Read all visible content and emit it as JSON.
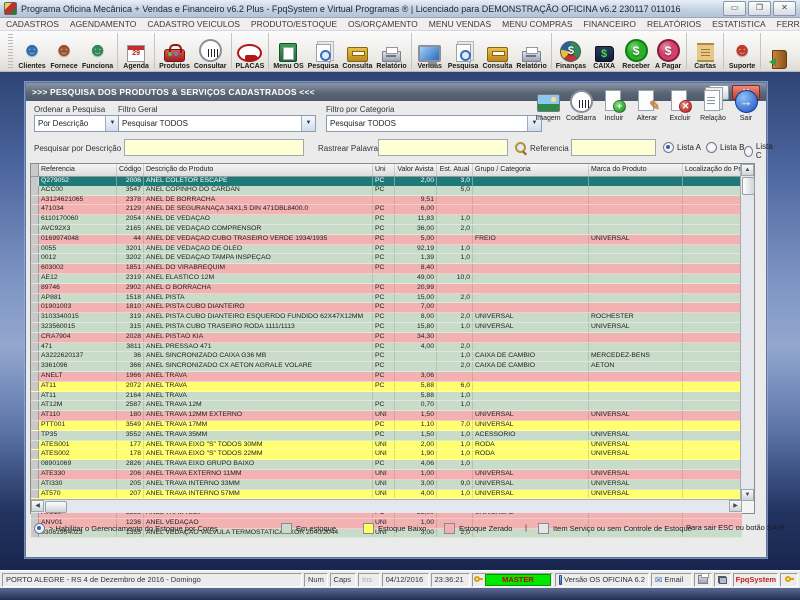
{
  "window": {
    "title": "Programa Oficina Mecânica + Vendas e Financeiro v6.2 Plus - FpqSystem e Virtual Programas ® | Licenciado para  DEMONSTRAÇÃO OFICINA v6.2 230117 011016",
    "minimize": "▭",
    "maximize": "❐",
    "close": "✕"
  },
  "menu": {
    "items": [
      "CADASTROS",
      "AGENDAMENTO",
      "CADASTRO VEICULOS",
      "PRODUTO/ESTOQUE",
      "OS/ORÇAMENTO",
      "MENU VENDAS",
      "MENU COMPRAS",
      "FINANCEIRO",
      "RELATÓRIOS",
      "ESTATISTICA",
      "FERRAMENTAS",
      "AJUDA"
    ],
    "email_label": "E-MAIL"
  },
  "toolbar": {
    "groups": [
      [
        {
          "name": "clientes-button",
          "label": "Clientes",
          "kind": "person",
          "glyph": "☻",
          "color": "#2e6db4"
        },
        {
          "name": "fornecedores-button",
          "label": "Fornece",
          "kind": "person",
          "glyph": "☻",
          "color": "#a0522d"
        },
        {
          "name": "funcionarios-button",
          "label": "Funciona",
          "kind": "person",
          "glyph": "☻",
          "color": "#2e8b57"
        }
      ],
      [
        {
          "name": "agenda-button",
          "label": "Agenda",
          "kind": "calendar",
          "glyph": "29",
          "color": "#b02020"
        }
      ],
      [
        {
          "name": "produtos-button",
          "label": "Produtos",
          "kind": "toolbox",
          "glyph": "",
          "color": "#a02020"
        },
        {
          "name": "consultar-button",
          "label": "Consultar",
          "kind": "barcode",
          "glyph": "",
          "color": "#8a9098"
        }
      ],
      [
        {
          "name": "placas-button",
          "label": "PLACAS",
          "kind": "car",
          "glyph": "",
          "color": "#b01818"
        }
      ],
      [
        {
          "name": "menu-os-button",
          "label": "Menu OS",
          "kind": "board",
          "glyph": "✎",
          "color": "#1e6e36"
        },
        {
          "name": "pesquisa-os-button",
          "label": "Pesquisa",
          "kind": "lens",
          "glyph": "",
          "color": "#3a6ebd"
        },
        {
          "name": "consulta-os-button",
          "label": "Consulta",
          "kind": "drawer",
          "glyph": "",
          "color": "#b8891c"
        },
        {
          "name": "relatorio-os-button",
          "label": "Relatório",
          "kind": "printer",
          "glyph": "",
          "color": "#9aa2b2"
        }
      ],
      [
        {
          "name": "vendas-button",
          "label": "Vendas",
          "kind": "monitor",
          "glyph": "",
          "color": "#2a6ac0"
        },
        {
          "name": "pesquisa-vendas-button",
          "label": "Pesquisa",
          "kind": "lens",
          "glyph": "",
          "color": "#3a6ebd"
        },
        {
          "name": "consulta-vendas-button",
          "label": "Consulta",
          "kind": "drawer",
          "glyph": "",
          "color": "#b8891c"
        },
        {
          "name": "relatorio-vendas-button",
          "label": "Relatório",
          "kind": "printer",
          "glyph": "",
          "color": "#9aa2b2"
        }
      ],
      [
        {
          "name": "financas-button",
          "label": "Finanças",
          "kind": "pie",
          "glyph": "$",
          "color": "#2e8b57"
        },
        {
          "name": "caixa-button",
          "label": "CAIXA",
          "kind": "book",
          "glyph": "$",
          "color": "#131f3a"
        },
        {
          "name": "receber-button",
          "label": "Receber",
          "kind": "coin",
          "glyph": "$",
          "color": "#2ab02a",
          "border": "#127a12"
        },
        {
          "name": "a-pagar-button",
          "label": "A Pagar",
          "kind": "coin",
          "glyph": "$",
          "color": "#d04070",
          "border": "#8a1a3a"
        }
      ],
      [
        {
          "name": "cartas-button",
          "label": "Cartas",
          "kind": "scroll",
          "glyph": "",
          "color": "#b08c3c"
        }
      ],
      [
        {
          "name": "suporte-button",
          "label": "Suporte",
          "kind": "person",
          "glyph": "☻",
          "color": "#c0392b"
        }
      ],
      [
        {
          "name": "sair-app-button",
          "label": "",
          "kind": "door",
          "glyph": "",
          "color": "#8a5418"
        }
      ]
    ]
  },
  "panel": {
    "title": ">>>  PESQUISA DOS PRODUTOS & SERVIÇOS CADASTRADOS  <<<",
    "help_glyph": "?",
    "close_glyph": "✕",
    "filters": {
      "ordenar": {
        "label": "Ordenar a Pesquisa",
        "value": "Por Descrição"
      },
      "geral": {
        "label": "Filtro Geral",
        "value": "Pesquisar TODOS"
      },
      "categoria": {
        "label": "Filtro por Categoria",
        "value": "Pesquisar TODOS"
      }
    },
    "actions": [
      {
        "name": "imagem-button",
        "label": "Imagem",
        "kind": "image"
      },
      {
        "name": "codbarra-button",
        "label": "CodBarra",
        "kind": "codbar"
      },
      {
        "name": "incluir-button",
        "label": "Incluir",
        "kind": "doc-plus"
      },
      {
        "name": "alterar-button",
        "label": "Alterar",
        "kind": "doc-pencil"
      },
      {
        "name": "excluir-button",
        "label": "Excluir",
        "kind": "doc-x"
      },
      {
        "name": "relacao-button",
        "label": "Relação",
        "kind": "doc-print"
      },
      {
        "name": "sair-button",
        "label": "Sair",
        "kind": "exit"
      }
    ],
    "search": {
      "descricao_label": "Pesquisar por Descrição",
      "rastrear_label": "Rastrear Palavras",
      "referencia_label": "Referencia",
      "descricao_value": "",
      "rastrear_value": "",
      "referencia_value": ""
    },
    "lists": {
      "options": [
        "Lista A",
        "Lista B",
        "Lista C"
      ],
      "selected": "Lista A"
    },
    "grid": {
      "columns": [
        "Referencia",
        "Código",
        "Descrição do Produto",
        "Uni",
        "Valor Avista",
        "Est. Atual",
        "Grupo / Categoria",
        "Marca do Produto",
        "Localização do Produto"
      ],
      "col_keys": [
        "referencia",
        "codigo",
        "descricao",
        "uni",
        "valor-avista",
        "est-atual",
        "grupo-categoria",
        "marca",
        "localizacao"
      ],
      "rows": [
        {
          "status": "sel",
          "cells": [
            "Q279052",
            "2006",
            "ANEL COLETOR ESCAPE",
            "PC",
            "2,00",
            "3,0",
            "",
            "",
            ""
          ]
        },
        {
          "status": "ok",
          "cells": [
            "ACC00",
            "3547",
            "ANEL COPINHO DO CARDAN",
            "PC",
            "",
            "5,0",
            "",
            "",
            ""
          ]
        },
        {
          "status": "zero",
          "cells": [
            "A3124621065",
            "2378",
            "ANEL DE BORRACHA",
            "",
            "9,51",
            "",
            "",
            "",
            ""
          ]
        },
        {
          "status": "zero",
          "cells": [
            "471034",
            "2129",
            "ANEL DE SEGURANAÇA 34X1,5 DIN 471DBL8400.0",
            "PC",
            "6,00",
            "",
            "",
            "",
            ""
          ]
        },
        {
          "status": "ok",
          "cells": [
            "6110170060",
            "2054",
            "ANEL DE VEDAÇÃO",
            "PC",
            "11,83",
            "1,0",
            "",
            "",
            ""
          ]
        },
        {
          "status": "ok",
          "cells": [
            "AVC92X3",
            "2165",
            "ANEL DE VEDAÇÃO COMPRENSOR",
            "PC",
            "36,00",
            "2,0",
            "",
            "",
            ""
          ]
        },
        {
          "status": "zero",
          "cells": [
            "0169974048",
            "44",
            "ANEL DE VEDAÇÃO CUBO TRASEIRO VERDE 1934/1935",
            "PC",
            "5,00",
            "",
            "FREIO",
            "UNIVERSAL",
            ""
          ]
        },
        {
          "status": "ok",
          "cells": [
            "0055",
            "3201",
            "ANEL DE VEDAÇÃO DE ÓLEO",
            "PC",
            "92,19",
            "1,0",
            "",
            "",
            ""
          ]
        },
        {
          "status": "ok",
          "cells": [
            "0012",
            "3202",
            "ANEL DE VEDAÇÃO TAMPA INSPEÇÃO",
            "PC",
            "1,39",
            "1,0",
            "",
            "",
            ""
          ]
        },
        {
          "status": "zero",
          "cells": [
            "603002",
            "1851",
            "ANEL DO VIRABREQUIM",
            "PC",
            "8,40",
            "",
            "",
            "",
            ""
          ]
        },
        {
          "status": "ok",
          "cells": [
            "AE12",
            "2319",
            "ANEL ELASTICO 12M",
            "",
            "49,00",
            "10,0",
            "",
            "",
            ""
          ]
        },
        {
          "status": "zero",
          "cells": [
            "89746",
            "2902",
            "ANEL O BORRACHA",
            "PC",
            "20,99",
            "",
            "",
            "",
            ""
          ]
        },
        {
          "status": "ok",
          "cells": [
            "AP881",
            "1518",
            "ANEL PISTA",
            "PC",
            "15,00",
            "2,0",
            "",
            "",
            ""
          ]
        },
        {
          "status": "zero",
          "cells": [
            "01901003",
            "1810",
            "ANEL PISTA CUBO DIANTEIRO",
            "PC",
            "7,00",
            "",
            "",
            "",
            ""
          ]
        },
        {
          "status": "ok",
          "cells": [
            "3103340015",
            "319",
            "ANEL PISTA CUBO DIANTEIRO ESQUERDO FUNDIDO 62X47X12MM",
            "PC",
            "8,00",
            "2,0",
            "UNIVERSAL",
            "ROCHESTER",
            ""
          ]
        },
        {
          "status": "ok",
          "cells": [
            "323560015",
            "315",
            "ANEL PISTA CUBO TRASEIRO RODA 1111/1113",
            "PC",
            "15,80",
            "1,0",
            "UNIVERSAL",
            "UNIVERSAL",
            ""
          ]
        },
        {
          "status": "zero",
          "cells": [
            "CRA7904",
            "2028",
            "ANEL PISTÃO KIA",
            "PC",
            "34,30",
            "",
            "",
            "",
            ""
          ]
        },
        {
          "status": "ok",
          "cells": [
            "471",
            "3811",
            "ANEL PRESSAO 471",
            "PC",
            "4,00",
            "2,0",
            "",
            "",
            ""
          ]
        },
        {
          "status": "ok",
          "cells": [
            "A3222620137",
            "36",
            "ANEL SINCRONIZADO CAIXA G36 MB",
            "PC",
            "",
            "1,0",
            "CAIXA DE CAMBIO",
            "MERCEDEZ-BENS",
            ""
          ]
        },
        {
          "status": "ok",
          "cells": [
            "3361096",
            "366",
            "ANEL SINCRONIZADO CX AETON AGRALE VOLARE",
            "PC",
            "",
            "2,0",
            "CAIXA DE CAMBIO",
            "AETON",
            ""
          ]
        },
        {
          "status": "zero",
          "cells": [
            "ANELT",
            "1966",
            "ANEL TRAVA",
            "PC",
            "3,06",
            "",
            "",
            "",
            ""
          ]
        },
        {
          "status": "low",
          "cells": [
            "AT11",
            "2072",
            "ANEL TRAVA",
            "PC",
            "5,88",
            "6,0",
            "",
            "",
            ""
          ]
        },
        {
          "status": "ok",
          "cells": [
            "AT11",
            "2164",
            "ANEL TRAVA",
            "",
            "5,88",
            "1,0",
            "",
            "",
            ""
          ]
        },
        {
          "status": "ok",
          "cells": [
            "AT12M",
            "2587",
            "ANEL TRAVA 12M",
            "PC",
            "0,70",
            "1,0",
            "",
            "",
            ""
          ]
        },
        {
          "status": "zero",
          "cells": [
            "AT110",
            "180",
            "ANEL TRAVA 12MM EXTERNO",
            "UNI",
            "1,50",
            "",
            "UNIVERSAL",
            "UNIVERSAL",
            ""
          ]
        },
        {
          "status": "low",
          "cells": [
            "PTT001",
            "3549",
            "ANEL TRAVA 17MM",
            "PC",
            "1,10",
            "7,0",
            "UNIVERSAL",
            "",
            ""
          ]
        },
        {
          "status": "ok",
          "cells": [
            "TP35",
            "3552",
            "ANEL TRAVA 35MM",
            "PC",
            "1,50",
            "1,0",
            "ACESSORIO",
            "UNIVERSAL",
            ""
          ]
        },
        {
          "status": "low",
          "cells": [
            "ATES001",
            "177",
            "ANEL TRAVA EIXO \"S\" TODOS 30MM",
            "UNI",
            "2,00",
            "1,0",
            "RODA",
            "UNIVERSAL",
            ""
          ]
        },
        {
          "status": "low",
          "cells": [
            "ATES002",
            "178",
            "ANEL TRAVA EIXO \"S\" TODOS 22MM",
            "UNI",
            "1,90",
            "1,0",
            "RODA",
            "UNIVERSAL",
            ""
          ]
        },
        {
          "status": "ok",
          "cells": [
            "08901069",
            "2826",
            "ANEL TRAVA EIXO GRUPO BAIXO",
            "PC",
            "4,06",
            "1,0",
            "",
            "",
            ""
          ]
        },
        {
          "status": "zero",
          "cells": [
            "ATE330",
            "206",
            "ANEL TRAVA EXTERNO 11MM",
            "UNI",
            "1,00",
            "",
            "UNIVERSAL",
            "UNIVERSAL",
            ""
          ]
        },
        {
          "status": "ok",
          "cells": [
            "ATI330",
            "205",
            "ANEL TRAVA INTERNO 33MM",
            "UNI",
            "3,00",
            "9,0",
            "UNIVERSAL",
            "UNIVERSAL",
            ""
          ]
        },
        {
          "status": "low",
          "cells": [
            "AT570",
            "207",
            "ANEL TRAVA INTERNO 57MM",
            "UNI",
            "4,00",
            "1,0",
            "UNIVERSAL",
            "UNIVERSAL",
            ""
          ]
        },
        {
          "status": "ok",
          "cells": [
            "17312024",
            "2134",
            "ANEL TRAVA PONTA EIXO FREIO",
            "PC",
            "2,94",
            "3,0",
            "",
            "",
            ""
          ]
        },
        {
          "status": "zero",
          "cells": [
            "ATS10",
            "3338",
            "ANEL TRAVA S10",
            "PC",
            "25,00",
            "",
            "UNIVERSAL",
            "",
            ""
          ]
        },
        {
          "status": "zero",
          "cells": [
            "ANV01",
            "1236",
            "ANEL VEDAÇAO",
            "UNI",
            "1,00",
            "",
            "",
            "",
            ""
          ]
        },
        {
          "status": "ok",
          "cells": [
            "03061954023",
            "1355",
            "ANEL VEDAÇAO VALVULA TERMOSTATICA AXOR 2040/2044",
            "UNI",
            "3,00",
            "2,0",
            "",
            "",
            ""
          ]
        }
      ]
    },
    "legend": {
      "enable_label": "> Habilitar o Gerenciamento do Estoque por Cores",
      "items": [
        {
          "label": "Em estoque",
          "color": "#c9dcc9"
        },
        {
          "label": "Estoque Baixo",
          "color": "#ffff66"
        },
        {
          "label": "Estoque Zerado",
          "color": "#f2b2b2"
        }
      ],
      "separator": "|",
      "service_item": {
        "label": "Item Serviço ou sem Controle de Estoque",
        "color": "#e6e6e6"
      },
      "exit_hint": "Para sair ESC ou botão SAIR"
    }
  },
  "statusbar": {
    "location_date": "PORTO ALEGRE - RS  4 de Dezembro de 2016 - Domingo",
    "num": "Num",
    "caps": "Caps",
    "ins": "Ins",
    "date": "04/12/2016",
    "time": "23:36:21",
    "master": "MASTER",
    "version": "Versão OS OFICINA 6.2",
    "email": "Email",
    "brand": "FpqSystem",
    "mail_glyph": "✉"
  },
  "colors": {
    "in_stock": "#c9dcc9",
    "low_stock": "#ffff70",
    "zero_stock": "#f2b2b2",
    "selected_row": "#1e7a78"
  }
}
